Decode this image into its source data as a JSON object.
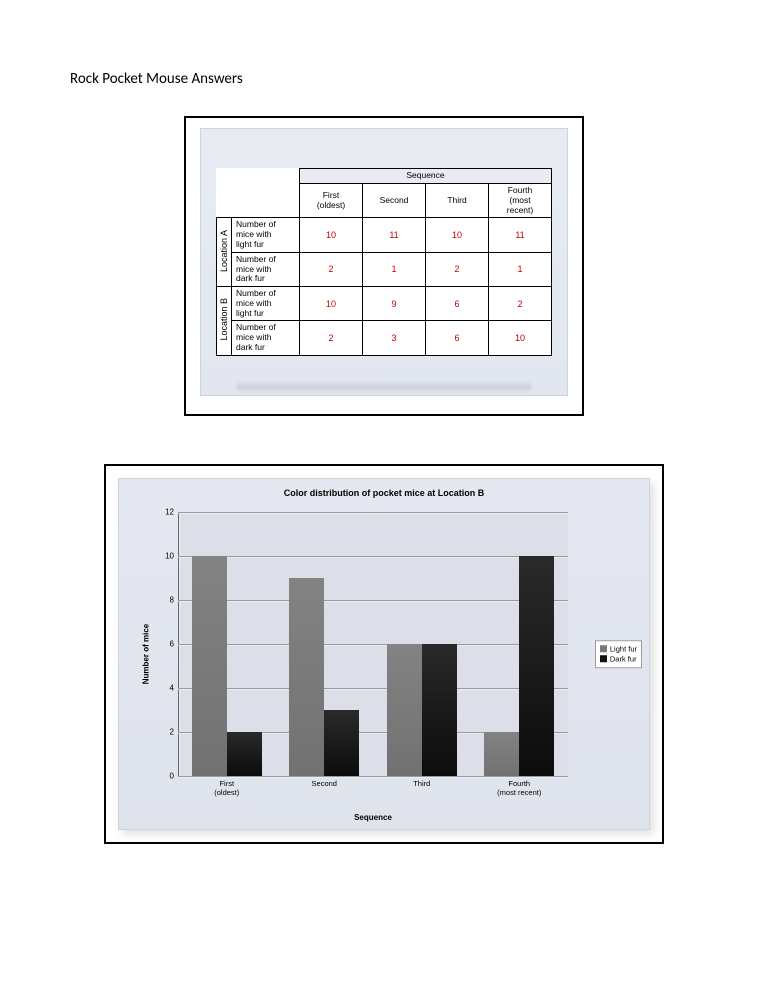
{
  "title": "Rock Pocket Mouse Answers",
  "table": {
    "sequence_header": "Sequence",
    "columns": [
      "First\n(oldest)",
      "Second",
      "Third",
      "Fourth\n(most\nrecent)"
    ],
    "locations": [
      {
        "label": "Location A",
        "rows": [
          {
            "label": "Number of\nmice with\nlight fur",
            "values": [
              "10",
              "11",
              "10",
              "11"
            ]
          },
          {
            "label": "Number of\nmice with\ndark fur",
            "values": [
              "2",
              "1",
              "2",
              "1"
            ]
          }
        ]
      },
      {
        "label": "Location B",
        "rows": [
          {
            "label": "Number of\nmice with\nlight fur",
            "values": [
              "10",
              "9",
              "6",
              "2"
            ]
          },
          {
            "label": "Number of\nmice with\ndark fur",
            "values": [
              "2",
              "3",
              "6",
              "10"
            ]
          }
        ]
      }
    ]
  },
  "chart": {
    "type": "bar",
    "title": "Color distribution of pocket mice at Location B",
    "ylabel": "Number of mice",
    "xlabel": "Sequence",
    "ylim": [
      0,
      12
    ],
    "ytick_step": 2,
    "categories": [
      "First\n(oldest)",
      "Second",
      "Third",
      "Fourth\n(most recent)"
    ],
    "series": [
      {
        "name": "Light fur",
        "color": "#7a7a7a",
        "values": [
          10,
          9,
          6,
          2
        ]
      },
      {
        "name": "Dark fur",
        "color": "#111111",
        "values": [
          2,
          3,
          6,
          10
        ]
      }
    ],
    "legend_labels": [
      "Light fur",
      "Dark fur"
    ],
    "background_color": "#dfe3ec",
    "grid_color": "#999999",
    "bar_group_gap_pct": 6,
    "bar_pair_gap_pct": 0,
    "bar_width_pct": 9
  }
}
